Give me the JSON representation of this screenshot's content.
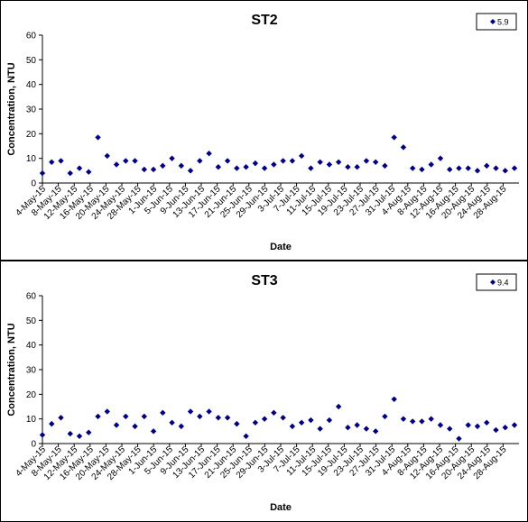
{
  "chart_data": [
    {
      "type": "scatter",
      "title": "ST2",
      "xlabel": "Date",
      "ylabel": "Concentration, NTU",
      "ylim": [
        0,
        60
      ],
      "yticks": [
        0,
        10,
        20,
        30,
        40,
        50,
        60
      ],
      "xtick_labels": [
        "4-May-15",
        "8-May-15",
        "12-May-15",
        "16-May-15",
        "20-May-15",
        "24-May-15",
        "28-May-15",
        "1-Jun-15",
        "5-Jun-15",
        "9-Jun-15",
        "13-Jun-15",
        "17-Jun-15",
        "21-Jun-15",
        "25-Jun-15",
        "29-Jun-15",
        "3-Jul-15",
        "7-Jul-15",
        "11-Jul-15",
        "15-Jul-15",
        "19-Jul-15",
        "23-Jul-15",
        "27-Jul-15",
        "31-Jul-15",
        "4-Aug-15",
        "8-Aug-15",
        "12-Aug-15",
        "16-Aug-15",
        "20-Aug-15",
        "24-Aug-15",
        "28-Aug-15"
      ],
      "grid": false,
      "legend_position": "top-right",
      "legend_label": "5.9",
      "marker_color": "#000080",
      "series": [
        {
          "name": "5.9",
          "values": [
            4,
            8.5,
            9,
            4,
            6,
            4.5,
            18.5,
            11,
            7.5,
            9,
            9,
            5.5,
            5.5,
            7,
            10,
            7,
            5,
            9,
            12,
            6.5,
            9,
            6,
            6.5,
            8,
            6,
            7.5,
            9,
            9,
            11,
            6,
            8.5,
            7.5,
            8.5,
            6.5,
            6.5,
            9,
            8.5,
            7,
            18.5,
            14.5,
            6,
            5.5,
            7.5,
            10,
            5.5,
            6,
            6,
            5,
            7,
            6,
            5,
            6
          ]
        }
      ]
    },
    {
      "type": "scatter",
      "title": "ST3",
      "xlabel": "Date",
      "ylabel": "Concentration, NTU",
      "ylim": [
        0,
        60
      ],
      "yticks": [
        0,
        10,
        20,
        30,
        40,
        50,
        60
      ],
      "xtick_labels": [
        "4-May-15",
        "8-May-15",
        "12-May-15",
        "16-May-15",
        "20-May-15",
        "24-May-15",
        "28-May-15",
        "1-Jun-15",
        "5-Jun-15",
        "9-Jun-15",
        "13-Jun-15",
        "17-Jun-15",
        "21-Jun-15",
        "25-Jun-15",
        "29-Jun-15",
        "3-Jul-15",
        "7-Jul-15",
        "11-Jul-15",
        "15-Jul-15",
        "19-Jul-15",
        "23-Jul-15",
        "27-Jul-15",
        "31-Jul-15",
        "4-Aug-15",
        "8-Aug-15",
        "12-Aug-15",
        "16-Aug-15",
        "20-Aug-15",
        "24-Aug-15",
        "28-Aug-15"
      ],
      "grid": false,
      "legend_position": "top-right",
      "legend_label": "9.4",
      "marker_color": "#000080",
      "series": [
        {
          "name": "9.4",
          "values": [
            3.5,
            8,
            10.5,
            4,
            3,
            4.5,
            11,
            13,
            7.5,
            11,
            7,
            11,
            5,
            12.5,
            8.5,
            7,
            13,
            11,
            13,
            10.5,
            10.5,
            8,
            3,
            8.5,
            10,
            12.5,
            10.5,
            7,
            8.5,
            9.5,
            6,
            9.5,
            15,
            6.5,
            7.5,
            6,
            5,
            11,
            18,
            10,
            9,
            9,
            10,
            7.5,
            6,
            2,
            7.5,
            7,
            8.5,
            5.5,
            6.5,
            7.5
          ]
        }
      ]
    }
  ]
}
